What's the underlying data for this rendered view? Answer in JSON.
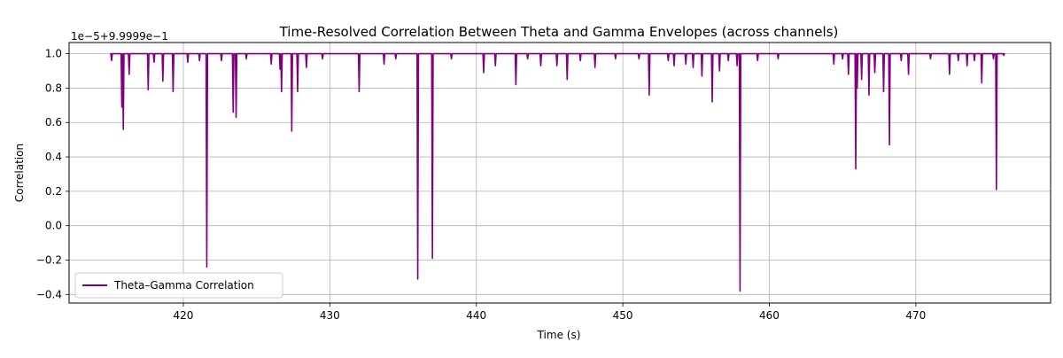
{
  "chart_data": {
    "type": "line",
    "title": "Time-Resolved Correlation Between Theta and Gamma Envelopes (across channels)",
    "xlabel": "Time (s)",
    "ylabel": "Correlation",
    "y_offset_label": "1e−5+9.9999e−1",
    "xlim": [
      412.2,
      479.2
    ],
    "ylim": [
      -0.45,
      1.065
    ],
    "xticks": [
      420,
      430,
      440,
      450,
      460,
      470
    ],
    "xtick_labels": [
      "420",
      "430",
      "440",
      "450",
      "460",
      "470"
    ],
    "yticks": [
      -0.4,
      -0.2,
      0.0,
      0.2,
      0.4,
      0.6,
      0.8,
      1.0
    ],
    "ytick_labels": [
      "−0.4",
      "−0.2",
      "0.0",
      "0.2",
      "0.4",
      "0.6",
      "0.8",
      "1.0"
    ],
    "grid": true,
    "legend_position": "lower-left",
    "color": "#800080",
    "series": [
      {
        "name": "Theta–Gamma Correlation",
        "baseline": 1.0,
        "x_range": [
          415.0,
          476.0
        ],
        "dips": [
          [
            415.1,
            0.96
          ],
          [
            415.8,
            0.69
          ],
          [
            415.9,
            0.56
          ],
          [
            416.3,
            0.88
          ],
          [
            417.6,
            0.79
          ],
          [
            418.0,
            0.95
          ],
          [
            418.6,
            0.84
          ],
          [
            419.3,
            0.78
          ],
          [
            420.3,
            0.95
          ],
          [
            421.1,
            0.96
          ],
          [
            421.6,
            -0.24
          ],
          [
            422.6,
            0.96
          ],
          [
            423.4,
            0.66
          ],
          [
            423.6,
            0.63
          ],
          [
            424.3,
            0.97
          ],
          [
            426.0,
            0.94
          ],
          [
            426.6,
            0.91
          ],
          [
            426.7,
            0.78
          ],
          [
            427.4,
            0.55
          ],
          [
            427.8,
            0.78
          ],
          [
            428.4,
            0.92
          ],
          [
            429.5,
            0.97
          ],
          [
            432.0,
            0.78
          ],
          [
            433.7,
            0.94
          ],
          [
            434.5,
            0.97
          ],
          [
            436.0,
            -0.31
          ],
          [
            437.0,
            -0.19
          ],
          [
            438.3,
            0.97
          ],
          [
            440.5,
            0.89
          ],
          [
            441.3,
            0.93
          ],
          [
            442.7,
            0.82
          ],
          [
            443.5,
            0.97
          ],
          [
            444.4,
            0.93
          ],
          [
            445.5,
            0.93
          ],
          [
            446.2,
            0.85
          ],
          [
            447.1,
            0.96
          ],
          [
            448.1,
            0.92
          ],
          [
            449.5,
            0.97
          ],
          [
            451.1,
            0.97
          ],
          [
            451.8,
            0.76
          ],
          [
            453.1,
            0.96
          ],
          [
            453.5,
            0.93
          ],
          [
            454.3,
            0.94
          ],
          [
            454.8,
            0.92
          ],
          [
            455.4,
            0.87
          ],
          [
            456.1,
            0.72
          ],
          [
            456.6,
            0.9
          ],
          [
            457.2,
            0.96
          ],
          [
            457.8,
            0.93
          ],
          [
            458.0,
            -0.38
          ],
          [
            459.2,
            0.96
          ],
          [
            460.6,
            0.97
          ],
          [
            464.4,
            0.94
          ],
          [
            465.0,
            0.97
          ],
          [
            465.4,
            0.88
          ],
          [
            465.9,
            0.33
          ],
          [
            466.0,
            0.8
          ],
          [
            466.3,
            0.85
          ],
          [
            466.8,
            0.76
          ],
          [
            467.2,
            0.89
          ],
          [
            467.8,
            0.78
          ],
          [
            468.2,
            0.47
          ],
          [
            469.0,
            0.96
          ],
          [
            469.5,
            0.88
          ],
          [
            471.0,
            0.97
          ],
          [
            472.3,
            0.88
          ],
          [
            472.9,
            0.96
          ],
          [
            473.5,
            0.93
          ],
          [
            474.0,
            0.96
          ],
          [
            474.5,
            0.83
          ],
          [
            475.3,
            0.97
          ],
          [
            475.5,
            0.21
          ],
          [
            476.0,
            0.99
          ]
        ]
      }
    ]
  }
}
